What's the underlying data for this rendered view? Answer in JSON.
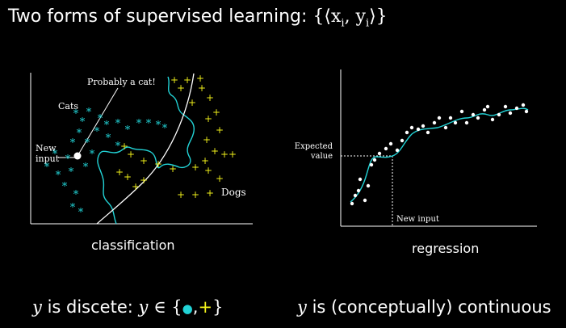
{
  "slide": {
    "title_prefix": "Two forms of supervised learning:",
    "title_math": "{⟨x",
    "title_math_i1": "i",
    "title_math_mid": ", y",
    "title_math_i2": "i",
    "title_math_end": "⟩}"
  },
  "classification": {
    "label_probably_cat": "Probably a cat!",
    "label_cats": "Cats",
    "label_new": "New",
    "label_input": "input",
    "label_dogs": "Dogs",
    "caption": "classification"
  },
  "regression": {
    "label_expected": "Expected",
    "label_value": "value",
    "label_new_input": "New input",
    "caption": "regression"
  },
  "bottom": {
    "left_y": "y",
    "left_text": "is discete:",
    "left_y2": "y",
    "left_in": "∈ {",
    "left_dot": "●",
    "left_comma": ",",
    "left_plus": "+",
    "left_close": "}",
    "right_y": "y",
    "right_text": "is (conceptually) continuous"
  },
  "colors": {
    "background": "#000000",
    "cat_color": "#22d3d6",
    "dog_color": "#f2f21a",
    "boundary_color": "#22d3d6",
    "regression_curve": "#22d3d6"
  }
}
